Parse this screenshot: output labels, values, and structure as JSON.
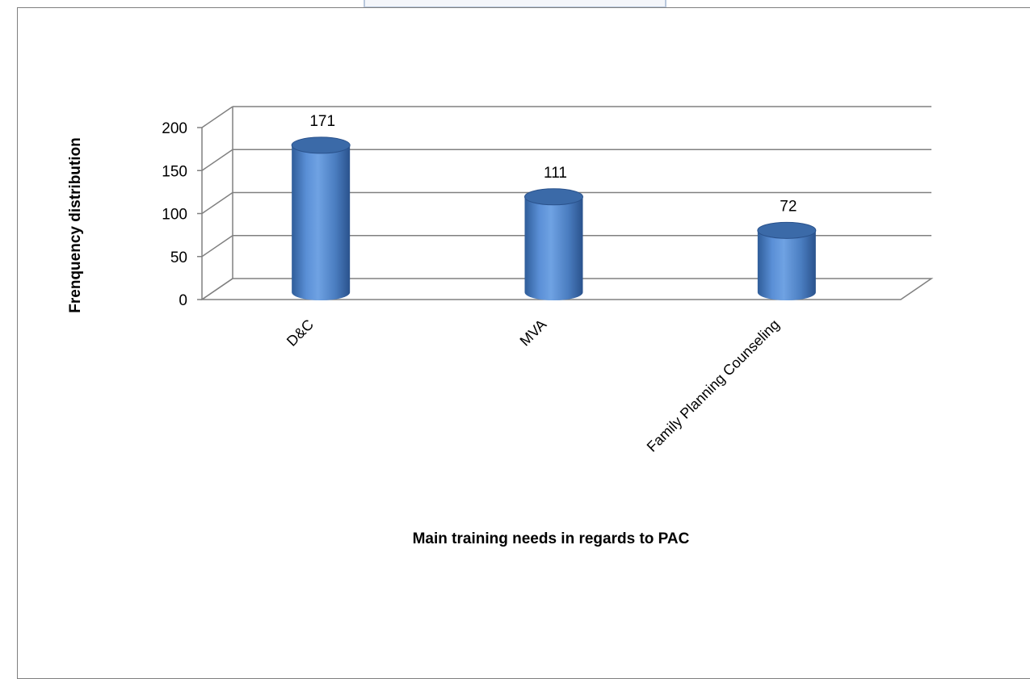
{
  "chart_data": {
    "type": "bar",
    "style": "3d-cylinder",
    "categories": [
      "D&C",
      "MVA",
      "Family Planning Counseling"
    ],
    "values": [
      171,
      111,
      72
    ],
    "data_labels": [
      "171",
      "111",
      "72"
    ],
    "title": "",
    "xlabel": "Main training needs in regards to PAC",
    "ylabel": "Frenquency  distribution",
    "ylim": [
      0,
      200
    ],
    "yticks": [
      "0",
      "50",
      "100",
      "150",
      "200"
    ],
    "grid": true,
    "legend": "none",
    "colors": {
      "bar_light": "#6f9fde",
      "bar_mid": "#4f81bd",
      "bar_dark": "#2c5590",
      "bar_top": "#3b6aa8",
      "grid": "#808080"
    }
  }
}
